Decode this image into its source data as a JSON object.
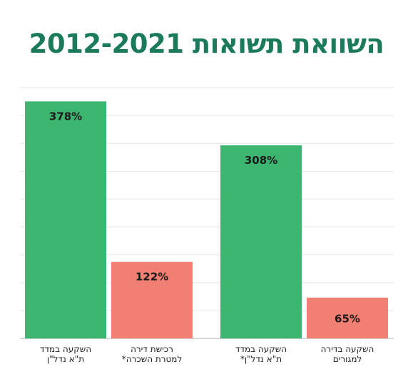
{
  "title": "השוואת תשואות 2012-2021",
  "chart_data": {
    "type": "bar",
    "title": "השוואת תשואות 2012-2021",
    "xlabel": "",
    "ylabel": "",
    "ylim": [
      0,
      400
    ],
    "grid": true,
    "legend": "none",
    "categories": [
      "השקעה במדד ת\"א נדל\"ן",
      "רכישת דירה למטרת השכרה*",
      "השקעה במדד ת\"א נדל\"ן*",
      "השקעה בדירה למגורים"
    ],
    "values": [
      378,
      122,
      308,
      65
    ],
    "value_labels": [
      "378%",
      "122%",
      "308%",
      "65%"
    ],
    "label_lines": [
      [
        "השקעה במדד",
        "ת\"א נדל\"ן"
      ],
      [
        "רכישת דירה",
        "למטרת השכרה*"
      ],
      [
        "השקעה במדד",
        "ת\"א נדל\"ן*"
      ],
      [
        "השקעה בדירה",
        "למגורים"
      ]
    ],
    "colors": [
      "#3bb56f",
      "#f17f73",
      "#3bb56f",
      "#f17f73"
    ]
  }
}
